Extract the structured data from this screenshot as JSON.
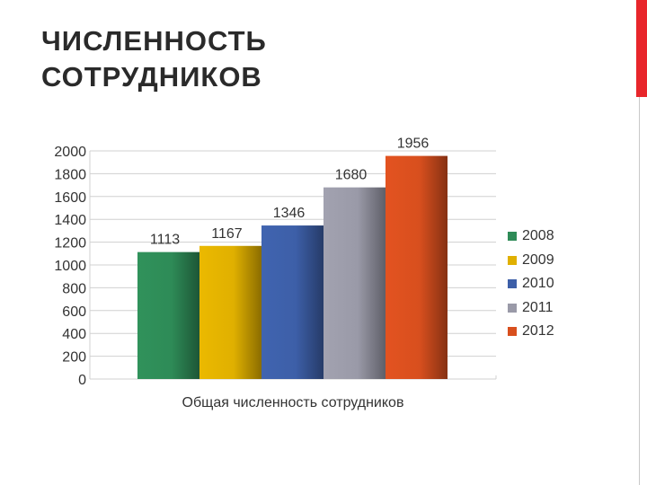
{
  "slide": {
    "title_line1": "ЧИСЛЕННОСТЬ",
    "title_line2": "СОТРУДНИКОВ",
    "accent_color": "#e8262b"
  },
  "chart_data": {
    "type": "bar",
    "categories": [
      "Общая численность сотрудников"
    ],
    "xlabel": "Общая численность сотрудников",
    "ylabel": "",
    "ylim": [
      0,
      2000
    ],
    "yticks": [
      0,
      200,
      400,
      600,
      800,
      1000,
      1200,
      1400,
      1600,
      1800,
      2000
    ],
    "grid": true,
    "legend_position": "right",
    "series": [
      {
        "name": "2008",
        "values": [
          1113
        ],
        "color": "#2e8b57"
      },
      {
        "name": "2009",
        "values": [
          1167
        ],
        "color": "#e0b000"
      },
      {
        "name": "2010",
        "values": [
          1346
        ],
        "color": "#3d5fa8"
      },
      {
        "name": "2011",
        "values": [
          1680
        ],
        "color": "#9a9aa8"
      },
      {
        "name": "2012",
        "values": [
          1956
        ],
        "color": "#d84f1e"
      }
    ]
  }
}
